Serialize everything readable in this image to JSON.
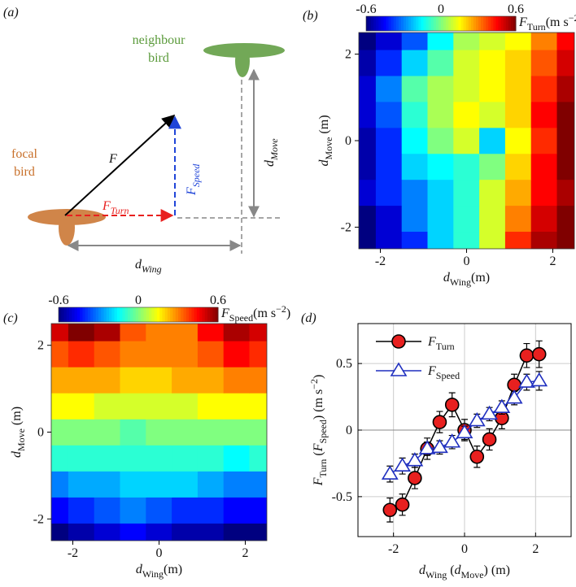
{
  "diagram": {
    "panel_label": "(a)",
    "neighbour_label": [
      "neighbour",
      "bird"
    ],
    "focal_label": [
      "focal",
      "bird"
    ],
    "force_label": "F",
    "turn_label": [
      {
        "text": "F"
      },
      {
        "text": "Turn",
        "baseline": "sub"
      }
    ],
    "speed_label": [
      {
        "text": "F"
      },
      {
        "text": "Speed",
        "baseline": "sub"
      }
    ],
    "move_label": [
      {
        "text": "d"
      },
      {
        "text": "Move",
        "baseline": "sub"
      }
    ],
    "wing_label": [
      {
        "text": "d"
      },
      {
        "text": "Wing",
        "baseline": "sub"
      }
    ]
  },
  "chart_data": [
    {
      "type": "heatmap",
      "panel_label": "(b)",
      "x": [
        -2.4,
        -1.8,
        -1.2,
        -0.6,
        0,
        0.6,
        1.2,
        1.8,
        2.4
      ],
      "y": [
        -2.4,
        -1.8,
        -1.2,
        -0.6,
        0,
        0.6,
        1.2,
        1.8,
        2.4
      ],
      "z": [
        [
          -0.6,
          -0.5,
          -0.4,
          -0.2,
          -0.1,
          0.1,
          0.4,
          0.55,
          0.6
        ],
        [
          -0.6,
          -0.5,
          -0.3,
          -0.2,
          -0.1,
          0.1,
          0.3,
          0.5,
          0.6
        ],
        [
          -0.5,
          -0.4,
          -0.3,
          -0.2,
          -0.1,
          0.1,
          0.25,
          0.45,
          0.55
        ],
        [
          -0.55,
          -0.4,
          -0.2,
          -0.15,
          -0.1,
          0,
          0.2,
          0.45,
          0.6
        ],
        [
          -0.55,
          -0.4,
          -0.15,
          0,
          0.1,
          -0.2,
          0.15,
          0.4,
          0.6
        ],
        [
          -0.5,
          -0.35,
          -0.1,
          0.05,
          0.15,
          0.1,
          0.2,
          0.45,
          0.6
        ],
        [
          -0.5,
          -0.3,
          -0.05,
          0.05,
          0.1,
          0.15,
          0.2,
          0.4,
          0.55
        ],
        [
          -0.55,
          -0.4,
          -0.2,
          -0.05,
          0.1,
          0.15,
          0.2,
          0.35,
          0.5
        ],
        [
          -0.6,
          -0.5,
          -0.35,
          -0.15,
          0.05,
          0.1,
          0.15,
          0.3,
          0.45
        ]
      ],
      "xlim": [
        -2.5,
        2.5
      ],
      "ylim": [
        -2.5,
        2.5
      ],
      "xticks": [
        -2,
        0,
        2
      ],
      "yticks": [
        -2,
        0,
        2
      ],
      "xlabel": [
        {
          "text": "d"
        },
        {
          "text": "Wing",
          "baseline": "sub"
        },
        {
          "text": "(m)"
        }
      ],
      "ylabel": [
        {
          "text": "d"
        },
        {
          "text": "Move",
          "baseline": "sub"
        },
        {
          "text": " (m)"
        }
      ],
      "colormap": "jet",
      "clim": [
        -0.6,
        0.6
      ],
      "colorbar_ticks": [
        -0.6,
        0,
        0.6
      ],
      "colorbar_label": [
        {
          "text": "F"
        },
        {
          "text": "Turn",
          "baseline": "sub"
        },
        {
          "text": "(m s"
        },
        {
          "text": "−2",
          "baseline": "super"
        },
        {
          "text": ")"
        }
      ]
    },
    {
      "type": "heatmap",
      "panel_label": "(c)",
      "x": [
        -2.4,
        -1.8,
        -1.2,
        -0.6,
        0,
        0.6,
        1.2,
        1.8,
        2.4
      ],
      "y": [
        -2.4,
        -1.8,
        -1.2,
        -0.6,
        0,
        0.6,
        1.2,
        1.8,
        2.4
      ],
      "z": [
        [
          -0.6,
          -0.55,
          -0.5,
          -0.45,
          -0.5,
          -0.55,
          -0.55,
          -0.6,
          -0.6
        ],
        [
          -0.45,
          -0.4,
          -0.35,
          -0.3,
          -0.35,
          -0.4,
          -0.4,
          -0.45,
          -0.45
        ],
        [
          -0.3,
          -0.25,
          -0.25,
          -0.2,
          -0.2,
          -0.2,
          -0.25,
          -0.3,
          -0.3
        ],
        [
          -0.1,
          -0.1,
          -0.1,
          -0.1,
          -0.1,
          -0.1,
          -0.1,
          -0.15,
          -0.1
        ],
        [
          0,
          0,
          0,
          -0.05,
          0,
          0,
          0,
          0,
          0
        ],
        [
          0.15,
          0.15,
          0.1,
          0.1,
          0.1,
          0.1,
          0.15,
          0.15,
          0.15
        ],
        [
          0.25,
          0.25,
          0.25,
          0.2,
          0.2,
          0.25,
          0.25,
          0.3,
          0.3
        ],
        [
          0.35,
          0.4,
          0.35,
          0.3,
          0.3,
          0.3,
          0.35,
          0.45,
          0.4
        ],
        [
          0.5,
          0.6,
          0.55,
          0.35,
          0.3,
          0.3,
          0.45,
          0.55,
          0.5
        ]
      ],
      "xlim": [
        -2.5,
        2.5
      ],
      "ylim": [
        -2.5,
        2.5
      ],
      "xticks": [
        -2,
        0,
        2
      ],
      "yticks": [
        -2,
        0,
        2
      ],
      "xlabel": [
        {
          "text": "d"
        },
        {
          "text": "Wing",
          "baseline": "sub"
        },
        {
          "text": "(m)"
        }
      ],
      "ylabel": [
        {
          "text": "d"
        },
        {
          "text": "Move",
          "baseline": "sub"
        },
        {
          "text": " (m)"
        }
      ],
      "colormap": "jet",
      "clim": [
        -0.6,
        0.6
      ],
      "colorbar_ticks": [
        -0.6,
        0,
        0.6
      ],
      "colorbar_label": [
        {
          "text": "F"
        },
        {
          "text": "Speed",
          "baseline": "sub"
        },
        {
          "text": "(m s"
        },
        {
          "text": "−2",
          "baseline": "super"
        },
        {
          "text": ")"
        }
      ]
    },
    {
      "type": "line",
      "panel_label": "(d)",
      "x": [
        -2.1,
        -1.75,
        -1.4,
        -1.05,
        -0.7,
        -0.35,
        0,
        0.35,
        0.7,
        1.05,
        1.4,
        1.75,
        2.1
      ],
      "series": [
        {
          "name": [
            {
              "text": "F"
            },
            {
              "text": "Turn",
              "baseline": "sub"
            }
          ],
          "color": "#000000",
          "marker": "circle",
          "marker_color": "#e8201f",
          "values": [
            -0.6,
            -0.56,
            -0.36,
            -0.14,
            0.06,
            0.19,
            0,
            -0.2,
            -0.07,
            0.09,
            0.34,
            0.56,
            0.57
          ],
          "errors": [
            0.09,
            0.08,
            0.08,
            0.08,
            0.08,
            0.09,
            0.08,
            0.08,
            0.08,
            0.08,
            0.08,
            0.09,
            0.1
          ]
        },
        {
          "name": [
            {
              "text": "F"
            },
            {
              "text": "Speed",
              "baseline": "sub"
            }
          ],
          "color": "#1f2fbf",
          "marker": "triangle",
          "marker_color": "#ffffff",
          "values": [
            -0.33,
            -0.27,
            -0.23,
            -0.14,
            -0.13,
            -0.09,
            -0.02,
            0.07,
            0.12,
            0.17,
            0.24,
            0.36,
            0.37
          ],
          "errors": [
            0.06,
            0.06,
            0.05,
            0.05,
            0.05,
            0.05,
            0.05,
            0.05,
            0.05,
            0.05,
            0.05,
            0.06,
            0.07
          ]
        }
      ],
      "xlim": [
        -3,
        3
      ],
      "ylim": [
        -0.8,
        0.8
      ],
      "xticks": [
        -2,
        0,
        2
      ],
      "yticks": [
        -0.5,
        0,
        0.5
      ],
      "grid": true,
      "legend": "upper left",
      "xlabel": [
        {
          "text": "d"
        },
        {
          "text": "Wing",
          "baseline": "sub"
        },
        {
          "text": " ("
        },
        {
          "text": "d"
        },
        {
          "text": "Move",
          "baseline": "sub"
        },
        {
          "text": ") (m)"
        }
      ],
      "ylabel": [
        {
          "text": "F"
        },
        {
          "text": "Turn",
          "baseline": "sub"
        },
        {
          "text": " ("
        },
        {
          "text": "F"
        },
        {
          "text": "Speed",
          "baseline": "sub"
        },
        {
          "text": ") (m s"
        },
        {
          "text": "−2",
          "baseline": "super"
        },
        {
          "text": ")"
        }
      ]
    }
  ]
}
